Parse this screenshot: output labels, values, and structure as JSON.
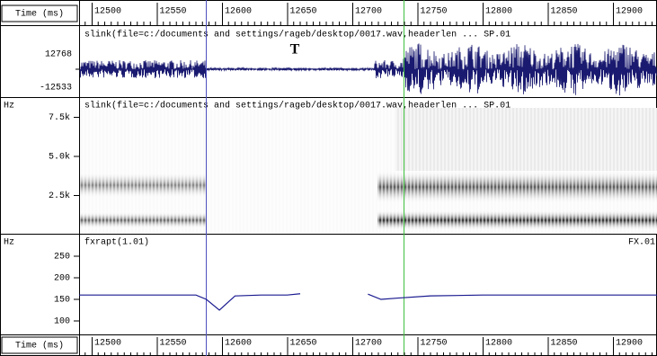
{
  "ruler": {
    "label": "Time (ms)",
    "ticks": [
      12500,
      12550,
      12600,
      12650,
      12700,
      12750,
      12800,
      12850,
      12900
    ]
  },
  "waveform": {
    "title": "slink(file=c:/documents and settings/rageb/desktop/0017.wav,headerlen ... SP.01",
    "max_label": "12768",
    "min_label": "-12533",
    "annotation": "T"
  },
  "spectrogram": {
    "unit": "Hz",
    "title": "slink(file=c:/documents and settings/rageb/desktop/0017.wav,headerlen ... SP.01",
    "ticks": [
      {
        "value": 7500,
        "label": "7.5k"
      },
      {
        "value": 5000,
        "label": "5.0k"
      },
      {
        "value": 2500,
        "label": "2.5k"
      }
    ]
  },
  "pitch": {
    "unit": "Hz",
    "title": "fxrapt(1.01)",
    "tag": "FX.01",
    "ticks": [
      250,
      200,
      150,
      100
    ],
    "time": [
      12490,
      12580,
      12588,
      12598,
      12610,
      12630,
      12650,
      12660,
      12665,
      12712,
      12722,
      12735,
      12760,
      12800,
      12935
    ],
    "hz": [
      160,
      160,
      150,
      125,
      158,
      160,
      160,
      163,
      null,
      162,
      150,
      153,
      158,
      160,
      160
    ]
  }
}
